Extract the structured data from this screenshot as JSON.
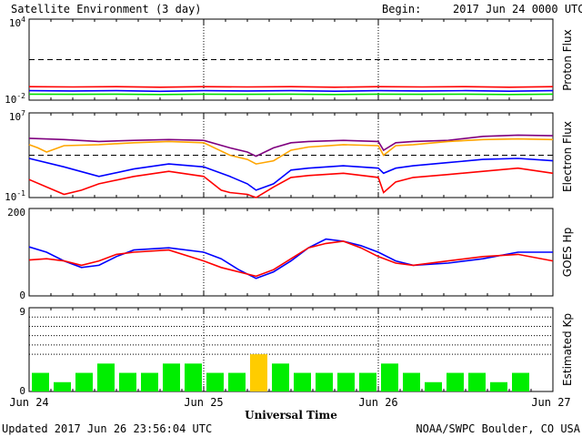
{
  "header": {
    "title": "Satellite Environment (3 day)",
    "begin_label": "Begin:",
    "begin_value": "2017 Jun 24 0000 UTC"
  },
  "footer": {
    "updated": "Updated 2017 Jun 26 23:56:04 UTC",
    "source": "NOAA/SWPC Boulder, CO USA"
  },
  "chart_data": [
    {
      "type": "line",
      "ylabel": "Proton Flux",
      "yscale": "log",
      "ylim": [
        0.01,
        10000
      ],
      "y_tick_labels": [
        "10^4",
        "10^-2"
      ],
      "threshold": 10,
      "x_range_days": [
        0,
        3
      ],
      "series": [
        {
          "color": "#ff0000",
          "x": [
            0,
            0.25,
            0.5,
            0.75,
            1.0,
            1.25,
            1.5,
            1.75,
            2.0,
            2.25,
            2.5,
            2.75,
            3.0
          ],
          "values": [
            0.1,
            0.095,
            0.1,
            0.09,
            0.1,
            0.095,
            0.1,
            0.09,
            0.1,
            0.095,
            0.1,
            0.09,
            0.1
          ]
        },
        {
          "color": "#0000ff",
          "x": [
            0,
            0.25,
            0.5,
            0.75,
            1.0,
            1.25,
            1.5,
            1.75,
            2.0,
            2.25,
            2.5,
            2.75,
            3.0
          ],
          "values": [
            0.05,
            0.048,
            0.05,
            0.045,
            0.05,
            0.048,
            0.05,
            0.046,
            0.05,
            0.048,
            0.05,
            0.046,
            0.05
          ]
        },
        {
          "color": "#00dd00",
          "x": [
            0,
            0.25,
            0.5,
            0.75,
            1.0,
            1.25,
            1.5,
            1.75,
            2.0,
            2.25,
            2.5,
            2.75,
            3.0
          ],
          "values": [
            0.028,
            0.027,
            0.028,
            0.026,
            0.028,
            0.027,
            0.028,
            0.026,
            0.028,
            0.027,
            0.028,
            0.026,
            0.028
          ]
        }
      ]
    },
    {
      "type": "line",
      "ylabel": "Electron Flux",
      "yscale": "log",
      "ylim": [
        0.1,
        10000000
      ],
      "y_tick_labels": [
        "10^7",
        "10^-1"
      ],
      "threshold": 1000,
      "x_range_days": [
        0,
        3
      ],
      "series": [
        {
          "color": "#7f007f",
          "x": [
            0,
            0.2,
            0.4,
            0.6,
            0.8,
            1.0,
            1.15,
            1.25,
            1.3,
            1.4,
            1.5,
            1.6,
            1.8,
            2.0,
            2.03,
            2.1,
            2.2,
            2.4,
            2.6,
            2.8,
            3.0
          ],
          "values": [
            40000,
            30000,
            20000,
            25000,
            30000,
            25000,
            5000,
            2000,
            800,
            5000,
            15000,
            20000,
            25000,
            20000,
            3000,
            15000,
            20000,
            25000,
            60000,
            80000,
            70000
          ]
        },
        {
          "color": "#ffa500",
          "x": [
            0,
            0.05,
            0.1,
            0.2,
            0.4,
            0.6,
            0.8,
            1.0,
            1.15,
            1.25,
            1.3,
            1.4,
            1.5,
            1.6,
            1.8,
            2.0,
            2.03,
            2.1,
            2.2,
            2.4,
            2.6,
            2.8,
            3.0
          ],
          "values": [
            10000,
            5000,
            2000,
            8000,
            10000,
            15000,
            20000,
            15000,
            1000,
            400,
            150,
            300,
            3000,
            6000,
            10000,
            8000,
            1000,
            8000,
            10000,
            20000,
            30000,
            35000,
            30000
          ]
        },
        {
          "color": "#0000ff",
          "x": [
            0,
            0.2,
            0.4,
            0.6,
            0.8,
            1.0,
            1.15,
            1.25,
            1.3,
            1.4,
            1.5,
            1.6,
            1.8,
            2.0,
            2.03,
            2.1,
            2.2,
            2.4,
            2.6,
            2.8,
            3.0
          ],
          "values": [
            500,
            80,
            10,
            50,
            150,
            80,
            10,
            2,
            0.5,
            2,
            40,
            60,
            100,
            60,
            20,
            60,
            100,
            200,
            400,
            500,
            300
          ]
        },
        {
          "color": "#ff0000",
          "x": [
            0,
            0.1,
            0.2,
            0.3,
            0.4,
            0.6,
            0.8,
            1.0,
            1.1,
            1.15,
            1.25,
            1.3,
            1.4,
            1.5,
            1.6,
            1.8,
            2.0,
            2.03,
            2.1,
            2.2,
            2.4,
            2.6,
            2.8,
            3.0
          ],
          "values": [
            5,
            1,
            0.2,
            0.5,
            2,
            10,
            30,
            10,
            0.5,
            0.3,
            0.2,
            0.1,
            1,
            8,
            12,
            20,
            8,
            0.3,
            3,
            8,
            15,
            30,
            60,
            20
          ]
        }
      ]
    },
    {
      "type": "line",
      "ylabel": "GOES Hp",
      "ylim": [
        0,
        200
      ],
      "y_tick_labels": [
        "200",
        "0"
      ],
      "x_range_days": [
        0,
        3
      ],
      "series": [
        {
          "color": "#0000ff",
          "x": [
            0,
            0.1,
            0.2,
            0.3,
            0.4,
            0.5,
            0.6,
            0.8,
            1.0,
            1.1,
            1.2,
            1.3,
            1.4,
            1.5,
            1.6,
            1.7,
            1.8,
            1.9,
            2.0,
            2.1,
            2.2,
            2.4,
            2.6,
            2.8,
            3.0
          ],
          "values": [
            112,
            100,
            80,
            65,
            70,
            90,
            105,
            110,
            100,
            85,
            60,
            40,
            55,
            80,
            110,
            130,
            125,
            115,
            100,
            80,
            70,
            75,
            85,
            100,
            100
          ]
        },
        {
          "color": "#ff0000",
          "x": [
            0,
            0.1,
            0.2,
            0.3,
            0.4,
            0.5,
            0.6,
            0.8,
            1.0,
            1.1,
            1.2,
            1.3,
            1.4,
            1.5,
            1.6,
            1.7,
            1.8,
            1.9,
            2.0,
            2.1,
            2.2,
            2.4,
            2.6,
            2.8,
            3.0
          ],
          "values": [
            82,
            85,
            80,
            70,
            80,
            95,
            100,
            105,
            80,
            65,
            55,
            45,
            60,
            85,
            110,
            120,
            125,
            110,
            90,
            75,
            70,
            80,
            90,
            95,
            80
          ]
        }
      ]
    },
    {
      "type": "bar",
      "ylabel": "Estimated Kp",
      "ylim": [
        0,
        9
      ],
      "y_tick_labels": [
        "9",
        "0"
      ],
      "gridlines": [
        4,
        5,
        6,
        7,
        8,
        9
      ],
      "bar_width_days": 0.125,
      "values": [
        2,
        1,
        2,
        3,
        2,
        2,
        3,
        3,
        2,
        2,
        4,
        3,
        2,
        2,
        2,
        2,
        3,
        2,
        1,
        2,
        2,
        1,
        2,
        0
      ],
      "colors": {
        "normal": "#00ee00",
        "elevated": "#ffcc00"
      },
      "elevated_threshold": 4
    }
  ],
  "x_axis": {
    "tick_labels": [
      "Jun 24",
      "Jun 25",
      "Jun 26",
      "Jun 27"
    ],
    "label": "Universal Time"
  }
}
